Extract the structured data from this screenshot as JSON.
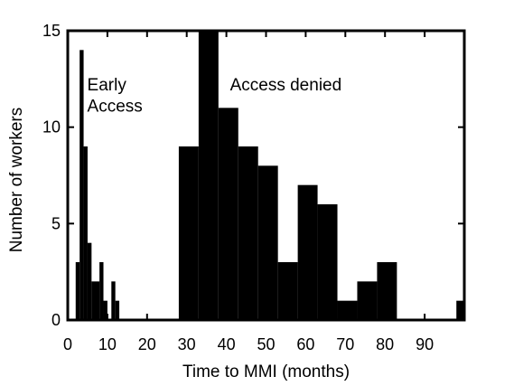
{
  "chart_data": {
    "type": "bar",
    "xlabel": "Time to MMI (months)",
    "ylabel": "Number of workers",
    "xlim": [
      0,
      100
    ],
    "ylim": [
      0,
      15
    ],
    "x_ticks": [
      "0",
      "10",
      "20",
      "30",
      "40",
      "50",
      "60",
      "70",
      "80",
      "90"
    ],
    "y_ticks": [
      "0",
      "5",
      "10",
      "15"
    ],
    "grid": false,
    "bar_color": "#000000",
    "bins": [
      {
        "x0": 2,
        "x1": 3,
        "value": 3
      },
      {
        "x0": 3,
        "x1": 4,
        "value": 14
      },
      {
        "x0": 4,
        "x1": 5,
        "value": 9
      },
      {
        "x0": 5,
        "x1": 6,
        "value": 4
      },
      {
        "x0": 6,
        "x1": 8,
        "value": 2
      },
      {
        "x0": 8,
        "x1": 9,
        "value": 3
      },
      {
        "x0": 9,
        "x1": 10,
        "value": 1
      },
      {
        "x0": 10,
        "x1": 11,
        "value": 0
      },
      {
        "x0": 11,
        "x1": 12,
        "value": 2
      },
      {
        "x0": 12,
        "x1": 13,
        "value": 1
      },
      {
        "x0": 28,
        "x1": 33,
        "value": 9
      },
      {
        "x0": 33,
        "x1": 38,
        "value": 15
      },
      {
        "x0": 38,
        "x1": 43,
        "value": 11
      },
      {
        "x0": 43,
        "x1": 48,
        "value": 9
      },
      {
        "x0": 48,
        "x1": 53,
        "value": 8
      },
      {
        "x0": 53,
        "x1": 58,
        "value": 3
      },
      {
        "x0": 58,
        "x1": 63,
        "value": 7
      },
      {
        "x0": 63,
        "x1": 68,
        "value": 6
      },
      {
        "x0": 68,
        "x1": 73,
        "value": 1
      },
      {
        "x0": 73,
        "x1": 78,
        "value": 2
      },
      {
        "x0": 78,
        "x1": 83,
        "value": 3
      },
      {
        "x0": 98,
        "x1": 101,
        "value": 1
      }
    ],
    "annotations": [
      {
        "text": "Early",
        "x": 4,
        "y": 11.9
      },
      {
        "text": "Access",
        "x": 4,
        "y": 10.8
      },
      {
        "text": "Access denied",
        "x": 40,
        "y": 11.9
      }
    ]
  }
}
